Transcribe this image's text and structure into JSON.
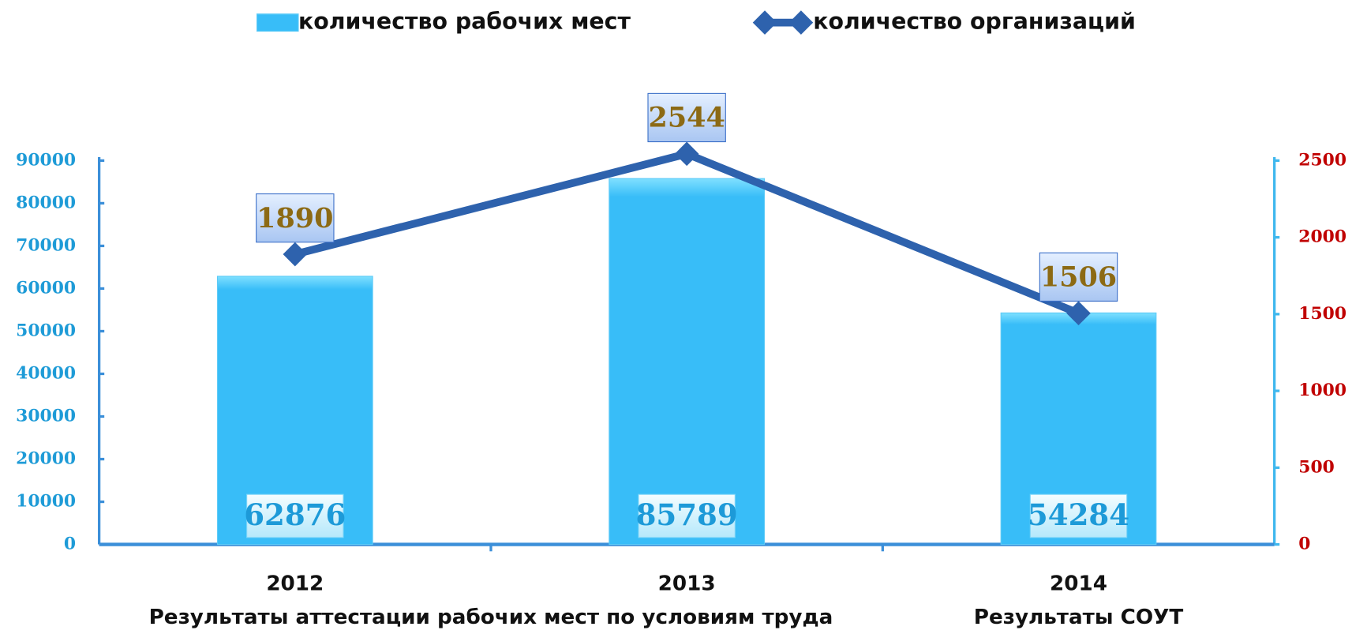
{
  "chart_data": {
    "type": "bar-line",
    "categories": [
      "2012",
      "2013",
      "2014"
    ],
    "group_labels": [
      "Результаты аттестации рабочих мест по условиям труда",
      "Результаты СОУТ"
    ],
    "series": [
      {
        "name": "количество рабочих мест",
        "type": "bar",
        "color": "#38bdf8",
        "values": [
          62876,
          85789,
          54284
        ]
      },
      {
        "name": "количество организаций",
        "type": "line",
        "axis": "y2",
        "color": "#2e62ad",
        "values": [
          1890,
          2544,
          1506
        ]
      }
    ],
    "ylim": [
      0,
      90000
    ],
    "yticks": [
      0,
      10000,
      20000,
      30000,
      40000,
      50000,
      60000,
      70000,
      80000,
      90000
    ],
    "y2lim": [
      0,
      2500
    ],
    "y2ticks": [
      0,
      500,
      1000,
      1500,
      2000,
      2500
    ],
    "ytick_color": "#1e9bd7",
    "y2tick_color": "#c00000",
    "axis_color": "#3b8fd9"
  }
}
